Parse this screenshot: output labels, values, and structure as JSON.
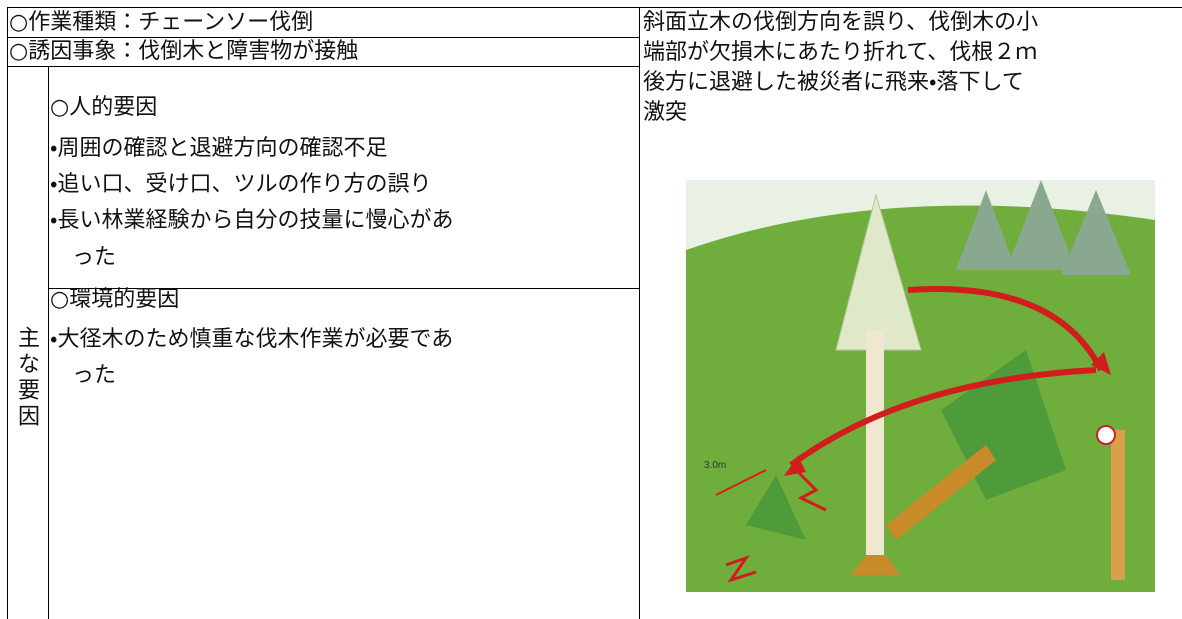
{
  "table": {
    "rows": [
      "○作業種類：チェーンソー伐倒",
      "○誘因事象：伐倒木と障害物が接触"
    ],
    "factors": {
      "label": "主な要因",
      "groups": [
        {
          "heading": "○人的要因",
          "lines": [
            "・周囲の確認と退避方向の確認不足",
            "・追い口、受け口、ツルの作り方の誤り",
            "・長い林業経験から自分の技量に慢心があ",
            "った"
          ]
        },
        {
          "heading": "○環境的要因",
          "lines": [
            "・大径木のため慎重な伐木作業が必要であ",
            "った"
          ]
        }
      ]
    },
    "description": [
      "斜面立木の伐倒方向を誤り、伐倒木の小",
      "端部が欠損木にあたり折れて、伐根２ｍ",
      "後方に退避した被災者に飛来・落下して",
      "激突"
    ]
  },
  "figure": {
    "label": "3.0m"
  }
}
